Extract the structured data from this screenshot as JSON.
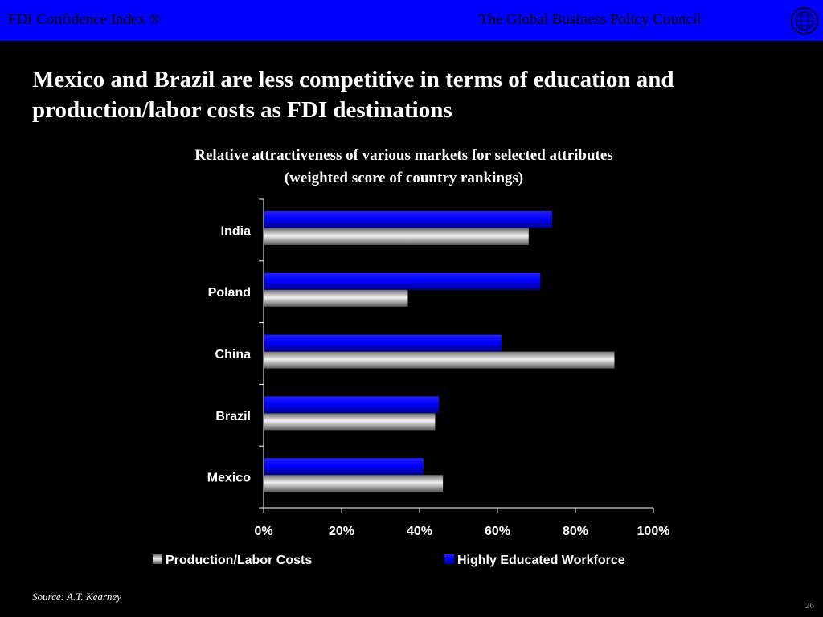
{
  "header": {
    "left_text": "FDI Confidence Index ®",
    "right_text": "The Global Business Policy Council",
    "logo_icon": "globe-seal-icon",
    "bar_color": "#0000ff"
  },
  "headline": "Mexico and Brazil are less competitive in terms of education and production/labor costs as FDI destinations",
  "chart_data": {
    "type": "bar",
    "orientation": "horizontal",
    "title": "Relative attractiveness of various markets for selected attributes",
    "subtitle": "(weighted score of country rankings)",
    "categories": [
      "India",
      "Poland",
      "China",
      "Brazil",
      "Mexico"
    ],
    "series": [
      {
        "name": "Highly Educated Workforce",
        "color": "#0000ff",
        "values": [
          74,
          71,
          61,
          45,
          41
        ]
      },
      {
        "name": "Production/Labor Costs",
        "color": "#a0a0a0",
        "values": [
          68,
          37,
          90,
          44,
          46
        ]
      }
    ],
    "xlim": [
      0,
      100
    ],
    "x_ticks": [
      0,
      20,
      40,
      60,
      80,
      100
    ],
    "x_tick_labels": [
      "0%",
      "20%",
      "40%",
      "60%",
      "80%",
      "100%"
    ],
    "legend_order": [
      "Production/Labor Costs",
      "Highly Educated Workforce"
    ],
    "legend_position": "bottom",
    "grid": false
  },
  "footer": {
    "source": "Source: A.T. Kearney",
    "page_number": "26"
  }
}
